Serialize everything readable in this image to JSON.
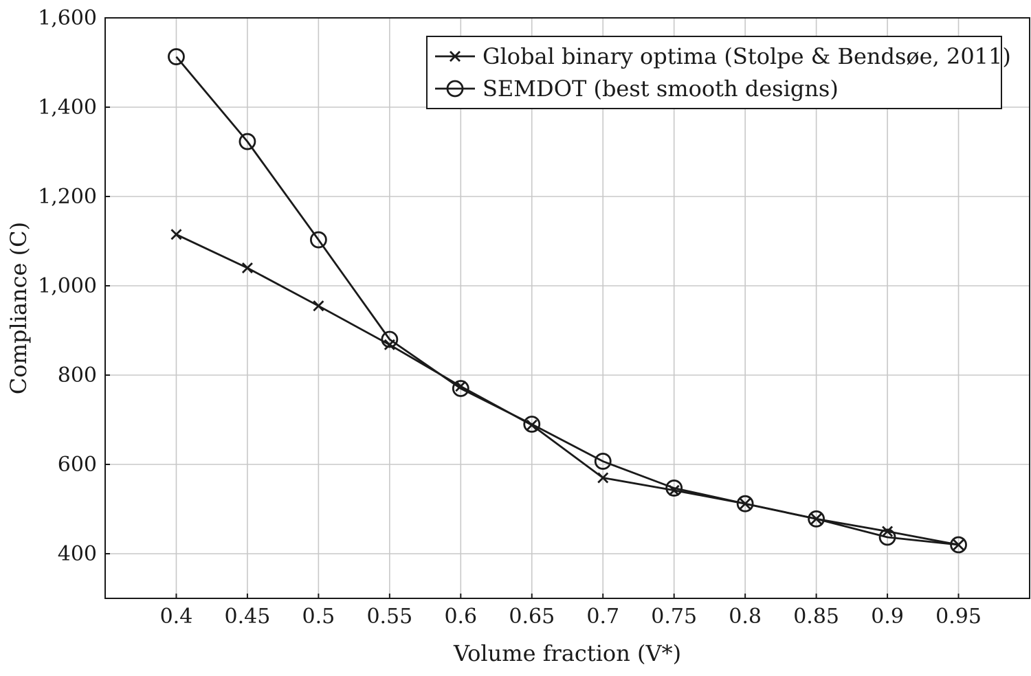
{
  "chart_data": {
    "type": "line",
    "xlabel": "Volume fraction (V*)",
    "ylabel": "Compliance (C)",
    "xlim": [
      0.35,
      1.0
    ],
    "ylim": [
      300,
      1600
    ],
    "x_ticks": [
      "0.4",
      "0.45",
      "0.5",
      "0.55",
      "0.6",
      "0.65",
      "0.7",
      "0.75",
      "0.8",
      "0.85",
      "0.9",
      "0.95"
    ],
    "y_ticks": [
      "400",
      "600",
      "800",
      "1,000",
      "1,200",
      "1,400",
      "1,600"
    ],
    "grid": true,
    "legend_position": "top-right",
    "x": [
      0.4,
      0.45,
      0.5,
      0.55,
      0.6,
      0.65,
      0.7,
      0.75,
      0.8,
      0.85,
      0.9,
      0.95
    ],
    "series": [
      {
        "name": "Global binary optima (Stolpe & Bendsøe, 2011)",
        "marker": "x",
        "values": [
          1115,
          1040,
          955,
          868,
          775,
          688,
          570,
          542,
          512,
          478,
          450,
          420
        ]
      },
      {
        "name": "SEMDOT (best smooth designs)",
        "marker": "circle",
        "values": [
          1513,
          1323,
          1103,
          880,
          770,
          690,
          607,
          547,
          512,
          478,
          437,
          420
        ]
      }
    ],
    "colors": {
      "line": "#1a1a1a",
      "grid": "#c8c8c8",
      "background": "#ffffff"
    }
  }
}
